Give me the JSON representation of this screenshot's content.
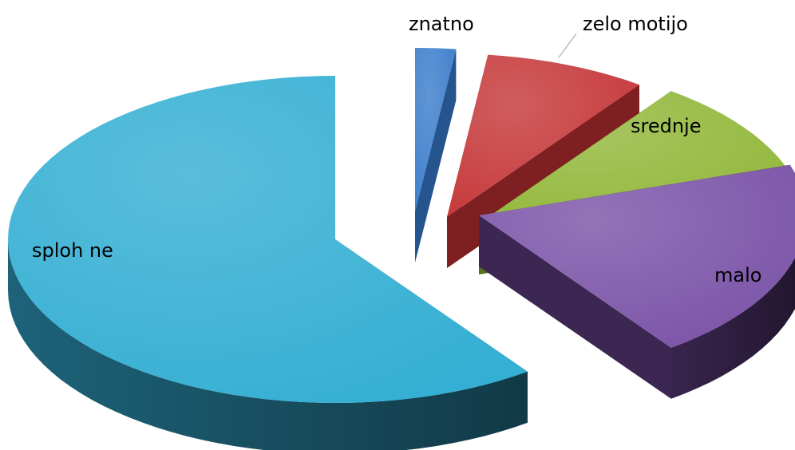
{
  "chart_data": {
    "type": "pie",
    "style": "3d-exploded",
    "legend": "none",
    "categories": [
      "znatno",
      "zelo motijo",
      "srednje",
      "malo",
      "sploh ne"
    ],
    "values": [
      2,
      8,
      10,
      20,
      60
    ],
    "colors": [
      "#3f7fcc",
      "#c6393b",
      "#93b83c",
      "#7c54a8",
      "#35afd3"
    ],
    "darkColors": [
      "#25548f",
      "#7e2022",
      "#54701d",
      "#3b2752",
      "#1f6880"
    ]
  }
}
